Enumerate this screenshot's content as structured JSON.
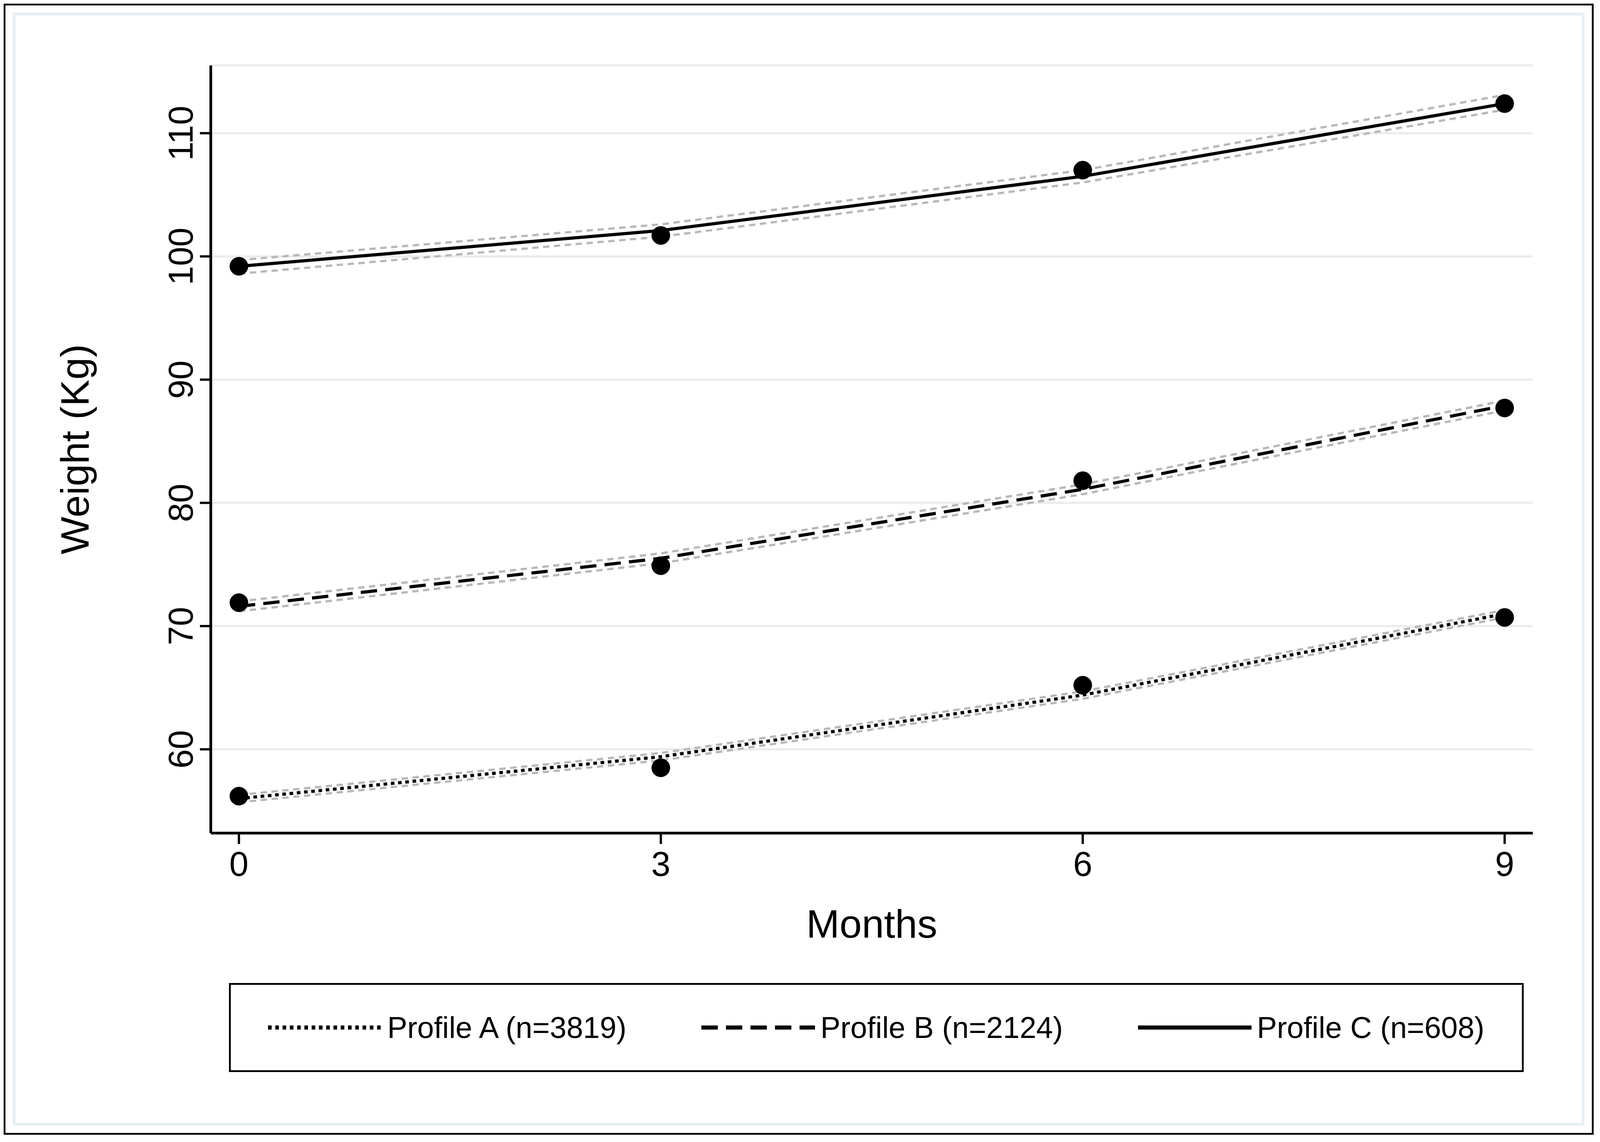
{
  "chart_data": {
    "type": "line",
    "x_label": "Months",
    "y_label": "Weight (Kg)",
    "x": [
      0,
      3,
      6,
      9
    ],
    "xlim": [
      -0.2,
      9.2
    ],
    "xticks": [
      0,
      3,
      6,
      9
    ],
    "ylim": [
      53.2,
      115.5
    ],
    "yticks": [
      60,
      70,
      80,
      90,
      100,
      110
    ],
    "grid": true,
    "legend": "bottom",
    "series": [
      {
        "name": "Profile A (n=3819)",
        "color": "#000000",
        "line_style": "dotted",
        "marker": "circle",
        "values": [
          56.0,
          59.4,
          64.4,
          71.0
        ],
        "observed": [
          56.2,
          58.5,
          65.2,
          70.7
        ],
        "lower": [
          55.7,
          59.1,
          64.1,
          70.7
        ],
        "upper": [
          56.3,
          59.7,
          64.7,
          71.3
        ]
      },
      {
        "name": "Profile B (n=2124)",
        "color": "#000000",
        "line_style": "dashed",
        "marker": "circle",
        "values": [
          71.6,
          75.5,
          81.1,
          87.9
        ],
        "observed": [
          71.9,
          74.9,
          81.8,
          87.7
        ],
        "lower": [
          71.2,
          75.1,
          80.7,
          87.5
        ],
        "upper": [
          72.0,
          75.9,
          81.5,
          88.3
        ]
      },
      {
        "name": "Profile C (n=608)",
        "color": "#000000",
        "line_style": "solid",
        "marker": "circle",
        "values": [
          99.2,
          102.1,
          106.5,
          112.4
        ],
        "observed": [
          99.2,
          101.7,
          107.0,
          112.4
        ],
        "lower": [
          98.6,
          101.6,
          106.0,
          111.9
        ],
        "upper": [
          99.7,
          102.6,
          107.0,
          113.1
        ]
      }
    ]
  }
}
